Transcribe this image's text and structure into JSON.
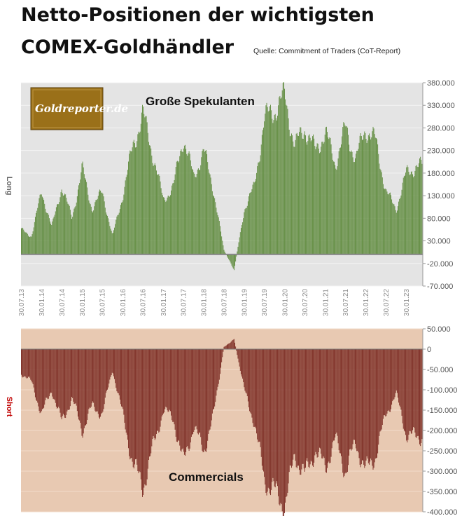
{
  "title_line1": "Netto-Positionen der wichtigsten",
  "title_line2": "COMEX-Goldhändler",
  "source": "Quelle: Commitment of Traders (CoT-Report)",
  "logo_text": "Goldreporter.de",
  "colors": {
    "top_plot_bg": "#e4e4e4",
    "bottom_plot_bg": "#e8c9b2",
    "long_bars": "#5e8a3c",
    "short_bars": "#7a2a22",
    "logo_bg": "#9a7019",
    "short_label": "#c00000",
    "long_label": "#666666"
  },
  "chart_data": [
    {
      "type": "bar",
      "title": "Große Spekulanten",
      "ylabel": "Long",
      "ylim": [
        -70000,
        380000
      ],
      "yticks": [
        "380.000",
        "330.000",
        "280.000",
        "230.000",
        "180.000",
        "130.000",
        "80.000",
        "30.000",
        "-20.000",
        "-70.000"
      ],
      "x_tick_labels": [
        "30.07.13",
        "30.01.14",
        "30.07.14",
        "30.01.15",
        "30.07.15",
        "30.01.16",
        "30.07.16",
        "30.01.17",
        "30.07.17",
        "30.01.18",
        "30.07.18",
        "30.01.19",
        "30.07.19",
        "30.01.20",
        "30.07.20",
        "30.01.21",
        "30.07.21",
        "30.01.22",
        "30.07.22",
        "30.01.23"
      ],
      "x": [
        "2013-07",
        "2013-10",
        "2014-01",
        "2014-04",
        "2014-07",
        "2014-10",
        "2015-01",
        "2015-04",
        "2015-07",
        "2015-10",
        "2016-01",
        "2016-04",
        "2016-07",
        "2016-10",
        "2017-01",
        "2017-04",
        "2017-07",
        "2017-10",
        "2018-01",
        "2018-04",
        "2018-07",
        "2018-10",
        "2019-01",
        "2019-04",
        "2019-07",
        "2019-10",
        "2020-01",
        "2020-04",
        "2020-07",
        "2020-10",
        "2021-01",
        "2021-04",
        "2021-07",
        "2021-10",
        "2022-01",
        "2022-04",
        "2022-07",
        "2022-10",
        "2023-01",
        "2023-04"
      ],
      "values": [
        55000,
        40000,
        140000,
        60000,
        150000,
        80000,
        190000,
        100000,
        140000,
        40000,
        130000,
        240000,
        310000,
        220000,
        120000,
        150000,
        260000,
        170000,
        230000,
        140000,
        10000,
        -35000,
        100000,
        150000,
        300000,
        320000,
        350000,
        240000,
        280000,
        230000,
        270000,
        200000,
        280000,
        210000,
        280000,
        250000,
        140000,
        100000,
        180000,
        195000
      ]
    },
    {
      "type": "bar",
      "title": "Commercials",
      "ylabel": "Short",
      "ylim": [
        -400000,
        50000
      ],
      "yticks": [
        "50.000",
        "0",
        "-50.000",
        "-100.000",
        "-150.000",
        "-200.000",
        "-250.000",
        "-300.000",
        "-350.000",
        "-400.000"
      ],
      "x": [
        "2013-07",
        "2013-10",
        "2014-01",
        "2014-04",
        "2014-07",
        "2014-10",
        "2015-01",
        "2015-04",
        "2015-07",
        "2015-10",
        "2016-01",
        "2016-04",
        "2016-07",
        "2016-10",
        "2017-01",
        "2017-04",
        "2017-07",
        "2017-10",
        "2018-01",
        "2018-04",
        "2018-07",
        "2018-10",
        "2019-01",
        "2019-04",
        "2019-07",
        "2019-10",
        "2020-01",
        "2020-04",
        "2020-07",
        "2020-10",
        "2021-01",
        "2021-04",
        "2021-07",
        "2021-10",
        "2022-01",
        "2022-04",
        "2022-07",
        "2022-10",
        "2023-01",
        "2023-04"
      ],
      "values": [
        -60000,
        -80000,
        -160000,
        -100000,
        -180000,
        -120000,
        -200000,
        -140000,
        -160000,
        -50000,
        -160000,
        -280000,
        -340000,
        -240000,
        -150000,
        -170000,
        -280000,
        -190000,
        -250000,
        -160000,
        5000,
        25000,
        -100000,
        -180000,
        -320000,
        -350000,
        -385000,
        -260000,
        -310000,
        -250000,
        -290000,
        -220000,
        -300000,
        -230000,
        -300000,
        -260000,
        -160000,
        -110000,
        -210000,
        -215000
      ]
    }
  ]
}
